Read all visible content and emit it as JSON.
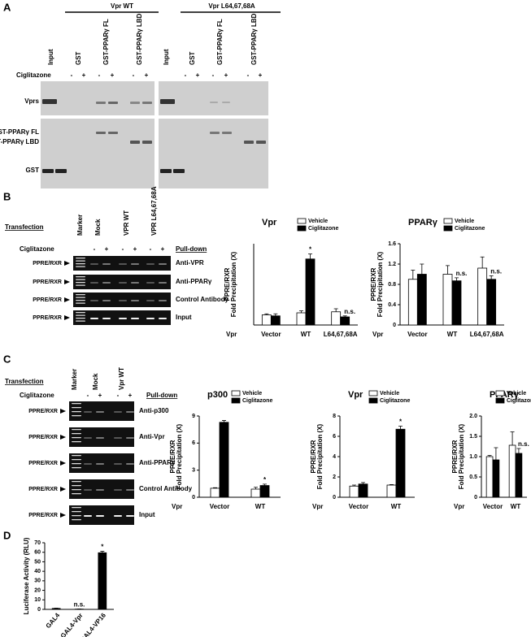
{
  "panel_a": {
    "label": "A",
    "groups": [
      "Vpr WT",
      "Vpr L64,67,68A"
    ],
    "lanes": [
      "Input",
      "GST",
      "GST-PPARγ FL",
      "GST-PPARγ LBD",
      "Input",
      "GST",
      "GST-PPARγ FL",
      "GST-PPARγ LBD"
    ],
    "treatment": "Ciglitazone",
    "signs": [
      "-",
      "+",
      "-",
      "+",
      "-",
      "+",
      "-",
      "+",
      "-",
      "+",
      "-",
      "+"
    ],
    "row_labels": [
      "Vprs",
      "GST-PPARγ FL",
      "GST-PPARγ LBD",
      "GST"
    ]
  },
  "panel_b": {
    "label": "B",
    "transfection": "Transfection",
    "lanes": [
      "Marker",
      "Mock",
      "VPR WT",
      "VPR L64,67,68A"
    ],
    "treatment": "Ciglitazone",
    "signs": [
      "-",
      "+",
      "-",
      "+",
      "-",
      "+"
    ],
    "pulldown": "Pull-down",
    "row_labels": [
      "PPRE/RXR",
      "PPRE/RXR",
      "PPRE/RXR",
      "PPRE/RXR"
    ],
    "rows": [
      "Anti-VPR",
      "Anti-PPARγ",
      "Control Antibody",
      "Input"
    ]
  },
  "panel_c": {
    "label": "C",
    "transfection": "Transfection",
    "lanes": [
      "Marker",
      "Mock",
      "Vpr WT"
    ],
    "treatment": "Ciglitazone",
    "signs": [
      "-",
      "+",
      "-",
      "+"
    ],
    "pulldown": "Pull-down",
    "row_labels": [
      "PPRE/RXR",
      "PPRE/RXR",
      "PPRE/RXR",
      "PPRE/RXR",
      "PPRE/RXR"
    ],
    "rows": [
      "Anti-p300",
      "Anti-Vpr",
      "Anti-PPARγ",
      "Control Antibody",
      "Input"
    ]
  },
  "panel_d": {
    "label": "D"
  },
  "chart_data": [
    {
      "type": "bar",
      "title": "Vpr",
      "ylabel": [
        "PPRE/RXR",
        "Fold Precipitation (X)"
      ],
      "xlabel": "Vpr",
      "categories": [
        "Vector",
        "WT",
        "L64,67,68A"
      ],
      "ylim": [
        0,
        8
      ],
      "series": [
        {
          "name": "Vehicle",
          "color": "#ffffff",
          "values": [
            1.0,
            1.2,
            1.3
          ],
          "errors": [
            0.1,
            0.2,
            0.3
          ],
          "annotations": [
            null,
            null,
            null
          ]
        },
        {
          "name": "Ciglitazone",
          "color": "#000000",
          "values": [
            0.9,
            6.5,
            0.8
          ],
          "errors": [
            0.2,
            0.5,
            0.1
          ],
          "annotations": [
            null,
            "*",
            "n.s."
          ]
        }
      ]
    },
    {
      "type": "bar",
      "title": "PPARγ",
      "ylabel": [
        "PPRE/RXR",
        "Fold Precipitation (X)"
      ],
      "xlabel": "Vpr",
      "categories": [
        "Vector",
        "WT",
        "L64,67,68A"
      ],
      "ylim": [
        0,
        1.6
      ],
      "yticks": [
        0,
        0.4,
        0.8,
        1.2,
        1.6
      ],
      "series": [
        {
          "name": "Vehicle",
          "color": "#ffffff",
          "values": [
            0.9,
            1.0,
            1.12
          ],
          "errors": [
            0.18,
            0.17,
            0.22
          ],
          "annotations": [
            null,
            null,
            null
          ]
        },
        {
          "name": "Ciglitazone",
          "color": "#000000",
          "values": [
            1.0,
            0.87,
            0.9
          ],
          "errors": [
            0.2,
            0.06,
            0.07
          ],
          "annotations": [
            null,
            "n.s.",
            "n.s."
          ]
        }
      ]
    },
    {
      "type": "bar",
      "title": "p300",
      "ylabel": [
        "PPRE/RXR",
        "Fold Precipitation (X)"
      ],
      "xlabel": "Vpr",
      "categories": [
        "Vector",
        "WT"
      ],
      "ylim": [
        0,
        9
      ],
      "yticks": [
        0,
        3,
        6,
        9
      ],
      "series": [
        {
          "name": "Vehicle",
          "color": "#ffffff",
          "values": [
            1.0,
            0.9
          ],
          "errors": [
            0.05,
            0.2
          ],
          "annotations": [
            null,
            null
          ]
        },
        {
          "name": "Ciglitazone",
          "color": "#000000",
          "values": [
            8.3,
            1.3
          ],
          "errors": [
            0.2,
            0.15
          ],
          "annotations": [
            null,
            "*"
          ]
        }
      ]
    },
    {
      "type": "bar",
      "title": "Vpr",
      "ylabel": [
        "PPRE/RXR",
        "Fold Precipitation (X)"
      ],
      "xlabel": "Vpr",
      "categories": [
        "Vector",
        "WT"
      ],
      "ylim": [
        0,
        8
      ],
      "yticks": [
        0,
        2,
        4,
        6,
        8
      ],
      "series": [
        {
          "name": "Vehicle",
          "color": "#ffffff",
          "values": [
            1.1,
            1.2
          ],
          "errors": [
            0.1,
            0.05
          ],
          "annotations": [
            null,
            null
          ]
        },
        {
          "name": "Ciglitazone",
          "color": "#000000",
          "values": [
            1.3,
            6.7
          ],
          "errors": [
            0.15,
            0.3
          ],
          "annotations": [
            null,
            "*"
          ]
        }
      ]
    },
    {
      "type": "bar",
      "title": "PPARγ",
      "ylabel": [
        "PPRE/RXR",
        "Fold Precipitation (X)"
      ],
      "xlabel": "Vpr",
      "categories": [
        "Vector",
        "WT"
      ],
      "ylim": [
        0,
        2
      ],
      "yticks": [
        0,
        0.5,
        {
          "value": 1,
          "label": "1.0"
        },
        1.5,
        {
          "value": 2,
          "label": "2.0"
        }
      ],
      "series": [
        {
          "name": "Vehicle",
          "color": "#ffffff",
          "values": [
            1.0,
            1.28
          ],
          "errors": [
            0.03,
            0.33
          ],
          "annotations": [
            null,
            null
          ]
        },
        {
          "name": "Ciglitazone",
          "color": "#000000",
          "values": [
            0.92,
            1.08
          ],
          "errors": [
            0.3,
            0.12
          ],
          "annotations": [
            null,
            "n.s."
          ]
        }
      ]
    },
    {
      "type": "bar",
      "ylabel": [
        "Luciferase Activity (RLU)"
      ],
      "categories": [
        "GAL4",
        "GAL4-Vpr",
        "GAL4-VP16"
      ],
      "ylim": [
        0,
        70
      ],
      "yticks": [
        0,
        10,
        20,
        30,
        40,
        50,
        60,
        70
      ],
      "color": "#000000",
      "values": [
        1,
        0.3,
        59.5
      ],
      "errors": [
        0.3,
        0.1,
        1.5
      ],
      "annotations": [
        null,
        "n.s.",
        "*"
      ]
    }
  ]
}
